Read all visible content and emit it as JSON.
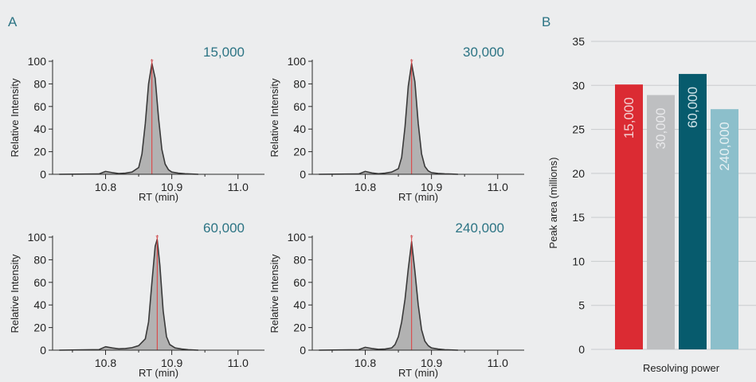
{
  "panels": {
    "a_label": "A",
    "b_label": "B"
  },
  "colors": {
    "background": "#ecedee",
    "axis": "#2a2a2a",
    "trace": "#3a3a3a",
    "fill": "#b2b2b2",
    "apex_line": "#e03b3b",
    "apex_marker": "#c8373a",
    "resolution_label": "#2c7484",
    "gridline": "#c9cbcd"
  },
  "chart_data": [
    {
      "id": "chrom-15000",
      "type": "area",
      "annotation": "15,000",
      "xlabel": "RT (min)",
      "ylabel": "Relative Intensity",
      "xlim": [
        10.72,
        11.04
      ],
      "ylim": [
        0,
        100
      ],
      "x_ticks": [
        10.8,
        10.9,
        11.0
      ],
      "x_tick_labels": [
        "10.8",
        "10.9",
        "11.0"
      ],
      "y_ticks": [
        0,
        20,
        40,
        60,
        80,
        100
      ],
      "apex_rt": 10.87,
      "trace": {
        "x": [
          10.73,
          10.79,
          10.8,
          10.81,
          10.82,
          10.83,
          10.84,
          10.85,
          10.855,
          10.86,
          10.865,
          10.87,
          10.875,
          10.88,
          10.885,
          10.89,
          10.895,
          10.9,
          10.91,
          10.92,
          10.93,
          10.94
        ],
        "y": [
          0,
          0.3,
          2.5,
          1.5,
          0.6,
          1.0,
          2.0,
          6,
          18,
          45,
          80,
          98,
          85,
          50,
          22,
          9,
          4,
          2,
          1,
          0.5,
          0.2,
          0
        ]
      }
    },
    {
      "id": "chrom-30000",
      "type": "area",
      "annotation": "30,000",
      "xlabel": "RT (min)",
      "ylabel": "Relative Intensity",
      "xlim": [
        10.72,
        11.04
      ],
      "ylim": [
        0,
        100
      ],
      "x_ticks": [
        10.8,
        10.9,
        11.0
      ],
      "x_tick_labels": [
        "10.8",
        "10.9",
        "11.0"
      ],
      "y_ticks": [
        0,
        20,
        40,
        60,
        80,
        100
      ],
      "apex_rt": 10.87,
      "trace": {
        "x": [
          10.73,
          10.79,
          10.8,
          10.81,
          10.82,
          10.83,
          10.84,
          10.85,
          10.855,
          10.86,
          10.865,
          10.87,
          10.875,
          10.88,
          10.885,
          10.89,
          10.895,
          10.9,
          10.91,
          10.92,
          10.93,
          10.94
        ],
        "y": [
          0,
          0.3,
          2.5,
          1.2,
          0.5,
          1.0,
          2.0,
          5,
          15,
          42,
          78,
          98,
          82,
          45,
          18,
          7,
          3,
          1.5,
          0.8,
          0.4,
          0.2,
          0
        ]
      }
    },
    {
      "id": "chrom-60000",
      "type": "area",
      "annotation": "60,000",
      "xlabel": "RT (min)",
      "ylabel": "Relative Intensity",
      "xlim": [
        10.72,
        11.04
      ],
      "ylim": [
        0,
        100
      ],
      "x_ticks": [
        10.8,
        10.9,
        11.0
      ],
      "x_tick_labels": [
        "10.8",
        "10.9",
        "11.0"
      ],
      "y_ticks": [
        0,
        20,
        40,
        60,
        80,
        100
      ],
      "apex_rt": 10.878,
      "trace": {
        "x": [
          10.73,
          10.79,
          10.8,
          10.81,
          10.82,
          10.83,
          10.84,
          10.85,
          10.86,
          10.865,
          10.87,
          10.875,
          10.878,
          10.882,
          10.887,
          10.892,
          10.897,
          10.905,
          10.915,
          10.925,
          10.94
        ],
        "y": [
          0,
          0.5,
          3,
          2,
          1.2,
          1.5,
          2.2,
          4,
          10,
          25,
          60,
          92,
          98,
          75,
          35,
          12,
          5,
          2,
          1,
          0.4,
          0
        ]
      }
    },
    {
      "id": "chrom-240000",
      "type": "area",
      "annotation": "240,000",
      "xlabel": "RT (min)",
      "ylabel": "Relative Intensity",
      "xlim": [
        10.72,
        11.04
      ],
      "ylim": [
        0,
        100
      ],
      "x_ticks": [
        10.8,
        10.9,
        11.0
      ],
      "x_tick_labels": [
        "10.8",
        "10.9",
        "11.0"
      ],
      "y_ticks": [
        0,
        20,
        40,
        60,
        80,
        100
      ],
      "apex_rt": 10.87,
      "trace": {
        "x": [
          10.73,
          10.79,
          10.8,
          10.81,
          10.82,
          10.83,
          10.84,
          10.845,
          10.85,
          10.855,
          10.86,
          10.865,
          10.87,
          10.875,
          10.88,
          10.885,
          10.89,
          10.895,
          10.9,
          10.91,
          10.92,
          10.94
        ],
        "y": [
          0,
          0.4,
          2.5,
          1.5,
          0.8,
          1.0,
          2.0,
          5,
          12,
          25,
          45,
          72,
          96,
          70,
          40,
          18,
          8,
          4,
          2,
          1,
          0.4,
          0
        ]
      }
    },
    {
      "id": "peak-area-bars",
      "type": "bar",
      "xlabel": "Resolving power",
      "ylabel": "Peak area (millions)",
      "ylim": [
        0,
        35
      ],
      "y_ticks": [
        0,
        5,
        10,
        15,
        20,
        25,
        30,
        35
      ],
      "grid": true,
      "categories": [
        "15,000",
        "30,000",
        "60,000",
        "240,000"
      ],
      "values": [
        30.1,
        28.9,
        31.3,
        27.3
      ],
      "bar_colors": [
        "#db2b33",
        "#bebfc1",
        "#075b6d",
        "#8cbfcb"
      ],
      "label_colors": [
        "#f3d0d1",
        "#e8e8ea",
        "#cfe3e8",
        "#e6f0f3"
      ]
    }
  ]
}
